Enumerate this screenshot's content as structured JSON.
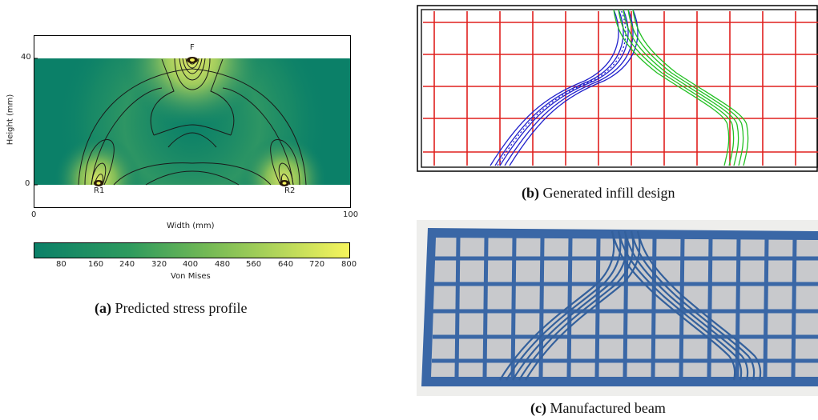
{
  "panel_a": {
    "top_label": "F",
    "support_left": "R1",
    "support_right": "R2",
    "y_axis_label": "Height (mm)",
    "x_axis_label": "Width (mm)",
    "y_ticks": [
      "0",
      "40"
    ],
    "x_ticks": [
      "0",
      "100"
    ],
    "colorbar_label": "Von Mises",
    "colorbar_ticks": [
      "80",
      "160",
      "240",
      "320",
      "400",
      "480",
      "560",
      "640",
      "720",
      "800"
    ],
    "colors": {
      "low": "#0b8068",
      "mid": "#7cbd55",
      "high": "#f6f45c"
    },
    "caption_tag": "(a)",
    "caption_text": "Predicted stress profile"
  },
  "panel_b": {
    "colors": {
      "grid": "#e0201e",
      "left_path": "#2222cc",
      "right_path": "#22c022",
      "frame": "#111111"
    },
    "caption_tag": "(b)",
    "caption_text": "Generated infill design"
  },
  "panel_c": {
    "colors": {
      "beam": "#3a67a6",
      "background": "#eeeeec"
    },
    "caption_tag": "(c)",
    "caption_text": "Manufactured beam"
  }
}
